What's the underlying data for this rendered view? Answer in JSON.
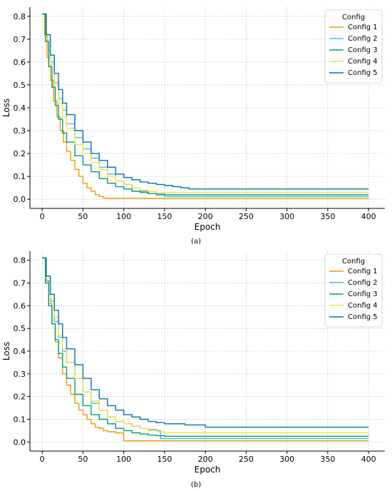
{
  "chart_data": [
    {
      "type": "line",
      "caption": "(a)",
      "xlabel": "Epoch",
      "ylabel": "Loss",
      "xlim": [
        -15,
        420
      ],
      "ylim": [
        -0.04,
        0.84
      ],
      "xticks": [
        0,
        50,
        100,
        150,
        200,
        250,
        300,
        350,
        400
      ],
      "yticks": [
        0.0,
        0.1,
        0.2,
        0.3,
        0.4,
        0.5,
        0.6,
        0.7,
        0.8
      ],
      "grid": true,
      "legend": {
        "title": "Config",
        "placement": "top-right"
      },
      "series": [
        {
          "name": "Config 1",
          "color": "#E69F00",
          "x": [
            0,
            3,
            6,
            10,
            14,
            18,
            22,
            26,
            30,
            35,
            40,
            45,
            50,
            55,
            60,
            65,
            70,
            75,
            80,
            100,
            150,
            200,
            250,
            300,
            350,
            400
          ],
          "y": [
            0.81,
            0.72,
            0.62,
            0.52,
            0.43,
            0.36,
            0.3,
            0.25,
            0.21,
            0.17,
            0.13,
            0.1,
            0.07,
            0.05,
            0.035,
            0.02,
            0.012,
            0.005,
            0.004,
            0.004,
            0.004,
            0.004,
            0.004,
            0.004,
            0.004,
            0.004
          ]
        },
        {
          "name": "Config 2",
          "color": "#56B4E9",
          "x": [
            0,
            5,
            10,
            15,
            20,
            25,
            30,
            40,
            50,
            60,
            70,
            80,
            90,
            100,
            110,
            120,
            130,
            140,
            150,
            200,
            250,
            300,
            350,
            400
          ],
          "y": [
            0.81,
            0.7,
            0.6,
            0.51,
            0.44,
            0.39,
            0.33,
            0.27,
            0.22,
            0.18,
            0.14,
            0.11,
            0.08,
            0.065,
            0.05,
            0.035,
            0.025,
            0.018,
            0.012,
            0.012,
            0.012,
            0.012,
            0.012,
            0.012
          ]
        },
        {
          "name": "Config 3",
          "color": "#009E73",
          "x": [
            0,
            4,
            8,
            12,
            16,
            20,
            25,
            30,
            40,
            50,
            60,
            70,
            80,
            90,
            100,
            110,
            120,
            130,
            140,
            150,
            200,
            250,
            300,
            350,
            400
          ],
          "y": [
            0.81,
            0.69,
            0.58,
            0.49,
            0.41,
            0.35,
            0.29,
            0.25,
            0.19,
            0.15,
            0.12,
            0.09,
            0.07,
            0.055,
            0.045,
            0.035,
            0.03,
            0.025,
            0.022,
            0.02,
            0.02,
            0.02,
            0.02,
            0.02,
            0.02
          ]
        },
        {
          "name": "Config 4",
          "color": "#F0E442",
          "x": [
            0,
            5,
            10,
            15,
            20,
            25,
            30,
            40,
            50,
            60,
            70,
            80,
            90,
            100,
            110,
            120,
            130,
            140,
            150,
            200,
            250,
            300,
            350,
            400
          ],
          "y": [
            0.81,
            0.7,
            0.59,
            0.5,
            0.42,
            0.36,
            0.31,
            0.24,
            0.2,
            0.16,
            0.13,
            0.1,
            0.08,
            0.065,
            0.05,
            0.04,
            0.035,
            0.03,
            0.03,
            0.03,
            0.03,
            0.03,
            0.03,
            0.03
          ]
        },
        {
          "name": "Config 5",
          "color": "#0072B2",
          "x": [
            0,
            5,
            10,
            15,
            20,
            25,
            30,
            40,
            50,
            60,
            70,
            80,
            90,
            100,
            110,
            120,
            130,
            140,
            150,
            160,
            170,
            180,
            200,
            250,
            300,
            350,
            400
          ],
          "y": [
            0.81,
            0.72,
            0.63,
            0.55,
            0.48,
            0.42,
            0.37,
            0.3,
            0.25,
            0.2,
            0.17,
            0.14,
            0.11,
            0.095,
            0.085,
            0.075,
            0.07,
            0.065,
            0.06,
            0.055,
            0.05,
            0.045,
            0.045,
            0.045,
            0.045,
            0.045,
            0.045
          ]
        }
      ]
    },
    {
      "type": "line",
      "caption": "(b)",
      "xlabel": "Epoch",
      "ylabel": "Loss",
      "xlim": [
        -15,
        420
      ],
      "ylim": [
        -0.04,
        0.84
      ],
      "xticks": [
        0,
        50,
        100,
        150,
        200,
        250,
        300,
        350,
        400
      ],
      "yticks": [
        0.0,
        0.1,
        0.2,
        0.3,
        0.4,
        0.5,
        0.6,
        0.7,
        0.8
      ],
      "grid": true,
      "legend": {
        "title": "Config",
        "placement": "top-right"
      },
      "series": [
        {
          "name": "Config 1",
          "color": "#E69F00",
          "x": [
            0,
            4,
            8,
            12,
            16,
            20,
            25,
            30,
            35,
            40,
            45,
            50,
            55,
            60,
            65,
            70,
            75,
            80,
            90,
            100,
            150,
            200,
            250,
            300,
            350,
            400
          ],
          "y": [
            0.81,
            0.71,
            0.61,
            0.52,
            0.44,
            0.37,
            0.3,
            0.25,
            0.21,
            0.17,
            0.14,
            0.12,
            0.1,
            0.08,
            0.065,
            0.06,
            0.05,
            0.045,
            0.04,
            0.005,
            0.005,
            0.005,
            0.005,
            0.005,
            0.005,
            0.005
          ]
        },
        {
          "name": "Config 2",
          "color": "#56B4E9",
          "x": [
            0,
            5,
            10,
            15,
            20,
            25,
            30,
            40,
            50,
            60,
            70,
            80,
            90,
            100,
            110,
            120,
            130,
            140,
            145,
            150,
            200,
            250,
            300,
            350,
            400
          ],
          "y": [
            0.81,
            0.71,
            0.62,
            0.53,
            0.46,
            0.4,
            0.35,
            0.28,
            0.22,
            0.17,
            0.14,
            0.11,
            0.09,
            0.08,
            0.07,
            0.06,
            0.055,
            0.05,
            0.015,
            0.015,
            0.015,
            0.015,
            0.015,
            0.015,
            0.015
          ]
        },
        {
          "name": "Config 3",
          "color": "#009E73",
          "x": [
            0,
            4,
            8,
            12,
            16,
            20,
            25,
            30,
            40,
            50,
            60,
            70,
            80,
            90,
            100,
            110,
            120,
            130,
            140,
            150,
            200,
            250,
            300,
            350,
            400
          ],
          "y": [
            0.81,
            0.7,
            0.6,
            0.52,
            0.45,
            0.39,
            0.33,
            0.28,
            0.21,
            0.16,
            0.12,
            0.1,
            0.08,
            0.06,
            0.05,
            0.04,
            0.035,
            0.03,
            0.028,
            0.025,
            0.025,
            0.025,
            0.025,
            0.025,
            0.025
          ]
        },
        {
          "name": "Config 4",
          "color": "#F0E442",
          "x": [
            0,
            5,
            10,
            15,
            20,
            25,
            30,
            40,
            50,
            60,
            70,
            80,
            90,
            100,
            110,
            120,
            130,
            140,
            150,
            200,
            250,
            300,
            350,
            400
          ],
          "y": [
            0.81,
            0.72,
            0.63,
            0.55,
            0.47,
            0.41,
            0.35,
            0.28,
            0.22,
            0.18,
            0.14,
            0.11,
            0.09,
            0.08,
            0.07,
            0.06,
            0.05,
            0.045,
            0.04,
            0.04,
            0.04,
            0.04,
            0.04,
            0.04
          ]
        },
        {
          "name": "Config 5",
          "color": "#0072B2",
          "x": [
            0,
            5,
            10,
            15,
            20,
            25,
            30,
            40,
            50,
            60,
            70,
            80,
            90,
            100,
            110,
            120,
            130,
            140,
            150,
            175,
            200,
            250,
            300,
            350,
            400
          ],
          "y": [
            0.81,
            0.73,
            0.65,
            0.58,
            0.52,
            0.46,
            0.41,
            0.34,
            0.28,
            0.23,
            0.19,
            0.16,
            0.14,
            0.12,
            0.11,
            0.1,
            0.09,
            0.085,
            0.08,
            0.075,
            0.065,
            0.065,
            0.065,
            0.065,
            0.065
          ]
        }
      ]
    }
  ]
}
